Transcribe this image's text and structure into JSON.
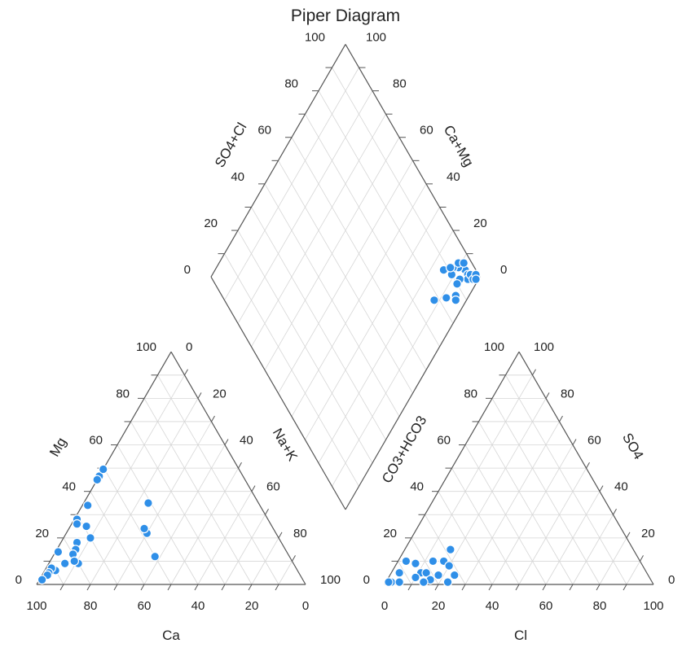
{
  "chart_data": {
    "type": "scatter",
    "subtype": "piper",
    "title": "Piper Diagram",
    "colors": {
      "point": "#2f8fe8",
      "point_stroke": "#ffffff",
      "grid": "#d6d6d6",
      "axis": "#555555",
      "text": "#222222"
    },
    "ticks": [
      "0",
      "20",
      "40",
      "60",
      "80",
      "100"
    ],
    "cation_triangle": {
      "bottom_label": "Ca",
      "left_label": "Mg",
      "right_label": "Na+K",
      "bottom_ticks": [
        "100",
        "80",
        "60",
        "40",
        "20",
        "0"
      ],
      "left_ticks": [
        "0",
        "20",
        "40",
        "60",
        "80",
        "100"
      ],
      "right_ticks": [
        "0",
        "20",
        "40",
        "60",
        "80",
        "100"
      ],
      "points": [
        {
          "Ca": 50,
          "Mg": 12,
          "NaK": 38
        },
        {
          "Ca": 48,
          "Mg": 22,
          "NaK": 30
        },
        {
          "Ca": 48,
          "Mg": 24,
          "NaK": 28
        },
        {
          "Ca": 41,
          "Mg": 35,
          "NaK": 24
        },
        {
          "Ca": 54,
          "Mg": 47,
          "NaK": 0
        },
        {
          "Ca": 55,
          "Mg": 45,
          "NaK": 0
        },
        {
          "Ca": 53,
          "Mg": 52,
          "NaK": 0
        },
        {
          "Ca": 64,
          "Mg": 34,
          "NaK": 2
        },
        {
          "Ca": 71,
          "Mg": 28,
          "NaK": 1
        },
        {
          "Ca": 69,
          "Mg": 25,
          "NaK": 6
        },
        {
          "Ca": 72,
          "Mg": 26,
          "NaK": 2
        },
        {
          "Ca": 70,
          "Mg": 20,
          "NaK": 10
        },
        {
          "Ca": 76,
          "Mg": 18,
          "NaK": 6
        },
        {
          "Ca": 78,
          "Mg": 15,
          "NaK": 7
        },
        {
          "Ca": 80,
          "Mg": 13,
          "NaK": 7
        },
        {
          "Ca": 85,
          "Mg": 14,
          "NaK": 1
        },
        {
          "Ca": 80,
          "Mg": 9,
          "NaK": 11
        },
        {
          "Ca": 81,
          "Mg": 10,
          "NaK": 9
        },
        {
          "Ca": 85,
          "Mg": 9,
          "NaK": 6
        },
        {
          "Ca": 90,
          "Mg": 6,
          "NaK": 4
        },
        {
          "Ca": 91,
          "Mg": 7,
          "NaK": 2
        },
        {
          "Ca": 93,
          "Mg": 5,
          "NaK": 2
        },
        {
          "Ca": 94,
          "Mg": 4,
          "NaK": 2
        },
        {
          "Ca": 97,
          "Mg": 2,
          "NaK": 1
        }
      ]
    },
    "anion_triangle": {
      "bottom_label": "Cl",
      "left_label": "CO3+HCO3",
      "right_label": "SO4",
      "bottom_ticks": [
        "0",
        "20",
        "40",
        "60",
        "80",
        "100"
      ],
      "left_ticks": [
        "100",
        "80",
        "60",
        "40",
        "20",
        "0"
      ],
      "right_ticks": [
        "0",
        "20",
        "40",
        "60",
        "80",
        "100"
      ],
      "points": [
        {
          "Cl": 17,
          "SO4": 15,
          "HCO3": 68
        },
        {
          "Cl": 13,
          "SO4": 10,
          "HCO3": 77
        },
        {
          "Cl": 17,
          "SO4": 10,
          "HCO3": 73
        },
        {
          "Cl": 20,
          "SO4": 8,
          "HCO3": 72
        },
        {
          "Cl": 3,
          "SO4": 10,
          "HCO3": 87
        },
        {
          "Cl": 7,
          "SO4": 9,
          "HCO3": 84
        },
        {
          "Cl": 11,
          "SO4": 5,
          "HCO3": 84
        },
        {
          "Cl": 3,
          "SO4": 5,
          "HCO3": 92
        },
        {
          "Cl": 13,
          "SO4": 5,
          "HCO3": 82
        },
        {
          "Cl": 18,
          "SO4": 4,
          "HCO3": 78
        },
        {
          "Cl": 10,
          "SO4": 3,
          "HCO3": 87
        },
        {
          "Cl": 16,
          "SO4": 2,
          "HCO3": 82
        },
        {
          "Cl": 2,
          "SO4": 1,
          "HCO3": 97
        },
        {
          "Cl": 5,
          "SO4": 1,
          "HCO3": 94
        },
        {
          "Cl": 14,
          "SO4": 1,
          "HCO3": 85
        },
        {
          "Cl": 23,
          "SO4": 1,
          "HCO3": 76
        },
        {
          "Cl": 24,
          "SO4": 4,
          "HCO3": 72
        },
        {
          "Cl": 1,
          "SO4": 1,
          "HCO3": 98
        }
      ]
    },
    "diamond": {
      "left_label": "SO4+Cl",
      "right_label": "Ca+Mg",
      "left_ticks": [
        "0",
        "20",
        "40",
        "60",
        "80",
        "100"
      ],
      "right_ticks": [
        "0",
        "20",
        "40",
        "60",
        "80",
        "100"
      ],
      "points": [
        {
          "SO4Cl": 7,
          "CaMg": 96
        },
        {
          "SO4Cl": 5,
          "CaMg": 96
        },
        {
          "SO4Cl": 4,
          "CaMg": 95
        },
        {
          "SO4Cl": 4,
          "CaMg": 97
        },
        {
          "SO4Cl": 2,
          "CaMg": 97
        },
        {
          "SO4Cl": 2,
          "CaMg": 99
        },
        {
          "SO4Cl": 1,
          "CaMg": 98
        },
        {
          "SO4Cl": 10,
          "CaMg": 94
        },
        {
          "SO4Cl": 12,
          "CaMg": 92
        },
        {
          "SO4Cl": 11,
          "CaMg": 95
        },
        {
          "SO4Cl": 9,
          "CaMg": 97
        },
        {
          "SO4Cl": 11,
          "CaMg": 90
        },
        {
          "SO4Cl": 7,
          "CaMg": 92
        },
        {
          "SO4Cl": 15,
          "CaMg": 88
        },
        {
          "SO4Cl": 13,
          "CaMg": 91
        },
        {
          "SO4Cl": 7,
          "CaMg": 90
        },
        {
          "SO4Cl": 5,
          "CaMg": 87
        },
        {
          "SO4Cl": 8,
          "CaMg": 83
        },
        {
          "SO4Cl": 4,
          "CaMg": 86
        },
        {
          "SO4Cl": 12,
          "CaMg": 78
        }
      ]
    }
  }
}
